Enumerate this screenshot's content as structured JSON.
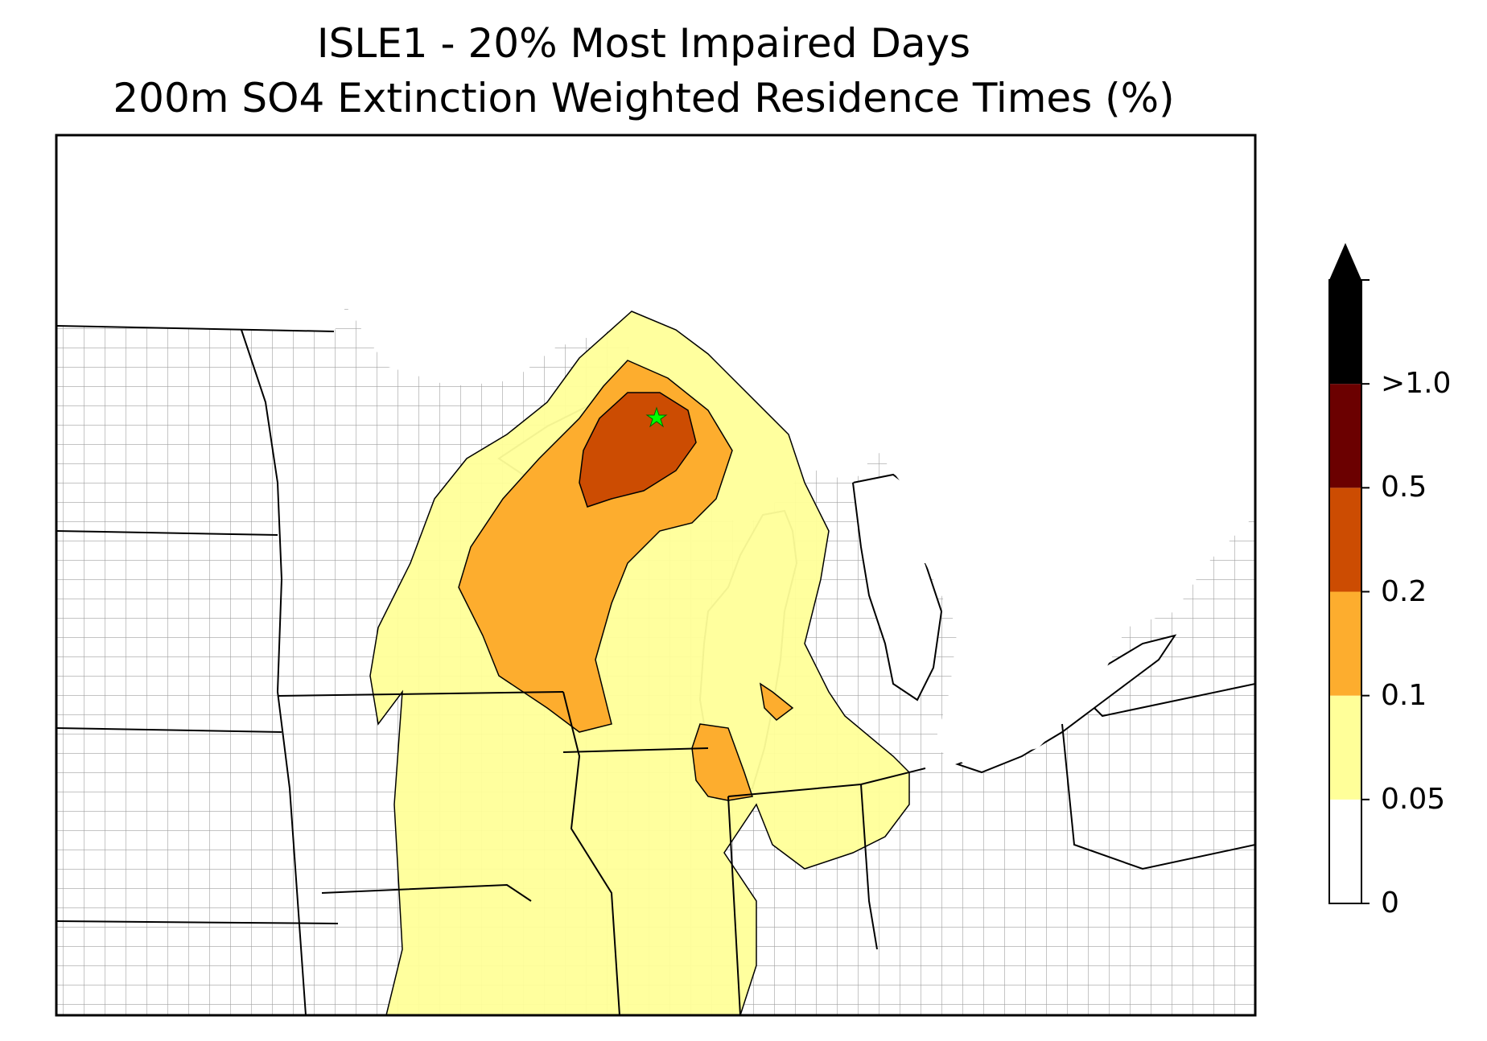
{
  "title_line1": "ISLE1 - 20% Most Impaired Days",
  "title_line2": "200m SO4 Extinction Weighted Residence Times (%)",
  "colorbar": {
    "tick_labels": [
      "0",
      "0.05",
      "0.1",
      "0.2",
      "0.5",
      ">1.0"
    ],
    "bins": [
      {
        "range": "0-0.05",
        "color": "#ffffff"
      },
      {
        "range": "0.05-0.1",
        "color": "#ffff99"
      },
      {
        "range": "0.1-0.2",
        "color": "#fdad2e"
      },
      {
        "range": "0.2-0.5",
        "color": "#cc4c02"
      },
      {
        "range": "0.5-1.0",
        "color": "#6b0000"
      },
      {
        "range": ">1.0",
        "color": "#000000"
      }
    ],
    "extend": "max"
  },
  "map": {
    "region": "Upper Midwest / Great Lakes, USA",
    "receptor_marker": {
      "name": "ISLE1",
      "symbol": "star",
      "color": "#00ff00"
    },
    "boundary_colors": {
      "state": "#000000",
      "county": "#9a9a9a"
    }
  }
}
